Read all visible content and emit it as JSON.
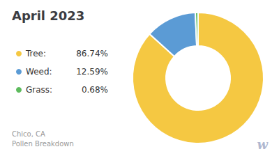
{
  "chart_data": {
    "type": "donut",
    "title": "April 2023",
    "subtitle": [
      "Chico, CA",
      "Pollen Breakdown"
    ],
    "categories": [
      "Tree:",
      "Weed:",
      "Grass:"
    ],
    "values": [
      86.74,
      12.59,
      0.68
    ],
    "value_labels": [
      "86.74%",
      "12.59%",
      "0.68%"
    ],
    "colors": [
      "#F5C842",
      "#5B9BD5",
      "#5DBB5D"
    ],
    "legend": "left",
    "annotations": [
      "w"
    ]
  }
}
